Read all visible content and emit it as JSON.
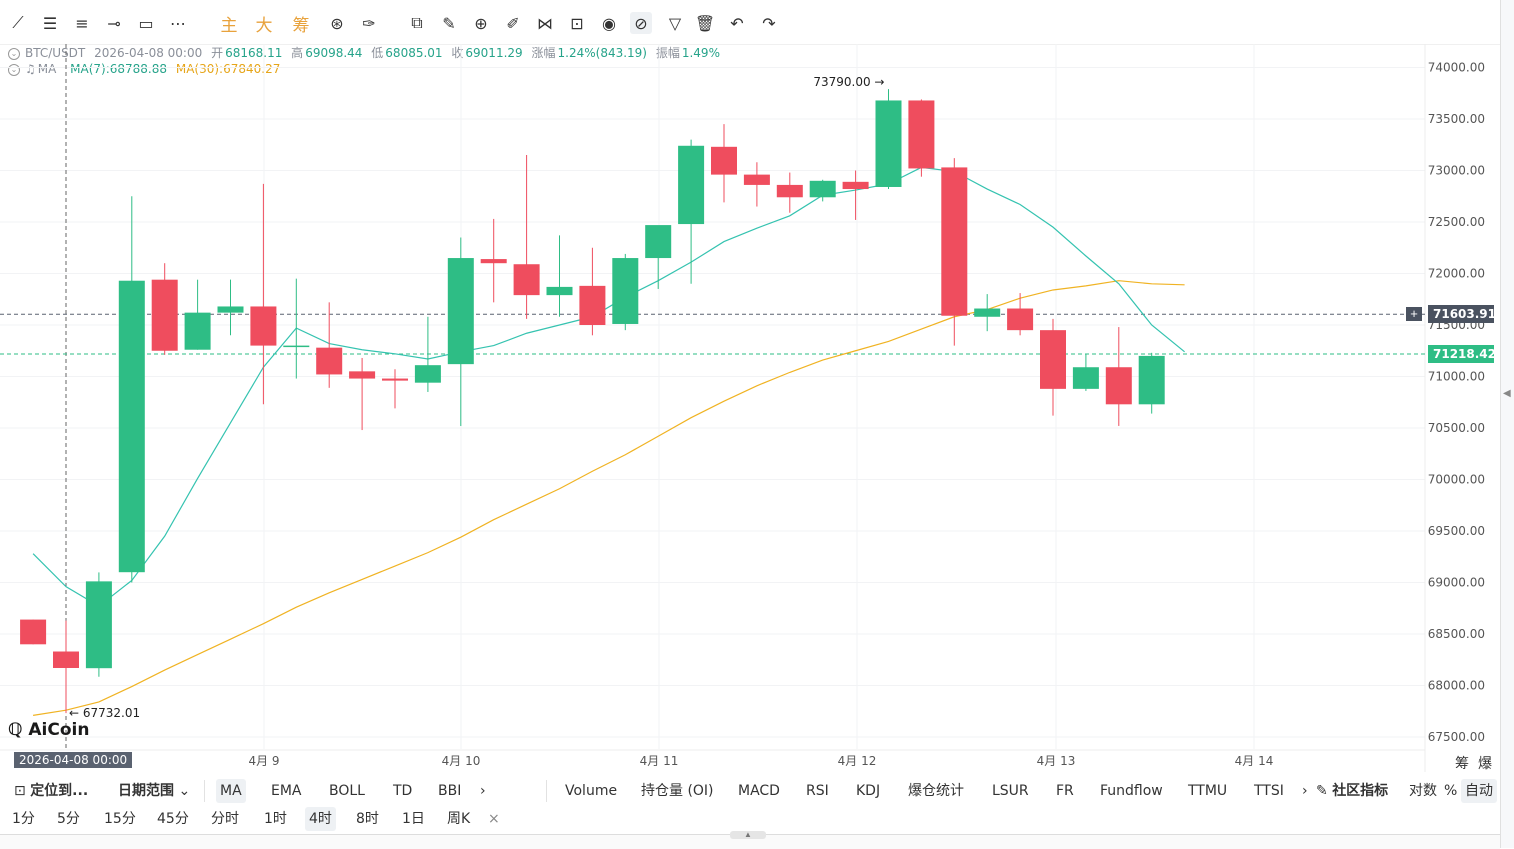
{
  "toolbar": {
    "tools": [
      {
        "name": "line-tool-icon",
        "glyph": "⟋"
      },
      {
        "name": "horizontal-lines-icon",
        "glyph": "☰"
      },
      {
        "name": "parallel-lines-icon",
        "glyph": "≡"
      },
      {
        "name": "ray-tool-icon",
        "glyph": "⊸"
      },
      {
        "name": "rectangle-tool-icon",
        "glyph": "▭"
      },
      {
        "name": "more-tools-icon",
        "glyph": "⋯"
      }
    ],
    "cn_buttons": [
      "主",
      "大",
      "筹"
    ],
    "right_tools": [
      {
        "name": "copy-icon",
        "glyph": "⧉"
      },
      {
        "name": "ruler-icon",
        "glyph": "✎"
      },
      {
        "name": "zoom-icon",
        "glyph": "⊕"
      },
      {
        "name": "brush-icon",
        "glyph": "✐"
      },
      {
        "name": "magnet-icon",
        "glyph": "⋈"
      },
      {
        "name": "lock-icon",
        "glyph": "⊡"
      },
      {
        "name": "eye-icon",
        "glyph": "◉"
      },
      {
        "name": "link-icon",
        "glyph": "⊘"
      },
      {
        "name": "filter-icon",
        "glyph": "▽"
      },
      {
        "name": "trash-icon",
        "glyph": "🗑"
      },
      {
        "name": "undo-icon",
        "glyph": "↶"
      },
      {
        "name": "redo-icon",
        "glyph": "↷"
      }
    ]
  },
  "info": {
    "symbol": "BTC/USDT",
    "datetime": "2026-04-08 00:00",
    "open_label": "开",
    "open": "68168.11",
    "high_label": "高",
    "high": "69098.44",
    "low_label": "低",
    "low": "68085.01",
    "close_label": "收",
    "close": "69011.29",
    "change_label": "涨幅",
    "change": "1.24%(843.19)",
    "amp_label": "振幅",
    "amp": "1.49%",
    "ma_name": "MA",
    "ma7": "MA(7):68788.88",
    "ma30": "MA(30):67840.27"
  },
  "price_tags": {
    "crosshair": "71603.91",
    "last": "71218.42",
    "crosshair_date": "2026-04-08 00:00"
  },
  "logo": "AiCoin",
  "corner_labels": [
    "筹",
    "爆"
  ],
  "tabs": {
    "left": [
      "定位到...",
      "日期范围"
    ],
    "main_indicators": [
      "MA",
      "EMA",
      "BOLL",
      "TD",
      "BBI"
    ],
    "sub_indicators": [
      "Volume",
      "持仓量 (OI)",
      "MACD",
      "RSI",
      "KDJ",
      "爆仓统计",
      "LSUR",
      "FR",
      "Fundflow",
      "TTMU",
      "TTSI"
    ],
    "community": "社区指标",
    "scale": [
      "对数",
      "%",
      "自动"
    ],
    "more": "›"
  },
  "timeframes": [
    "1分",
    "5分",
    "15分",
    "45分",
    "分时",
    "1时",
    "4时",
    "8时",
    "1日",
    "周K"
  ],
  "timeframe_selected": "4时",
  "colors": {
    "up": "#2ebd85",
    "down": "#ef4d5e",
    "ma7": "#35c3b0",
    "ma30": "#f0b323",
    "grid": "#f2f3f5"
  },
  "chart_data": {
    "type": "candlestick",
    "symbol": "BTC/USDT",
    "interval": "4时",
    "y_ticks": [
      74000,
      73500,
      73000,
      72500,
      72000,
      71500,
      71000,
      70500,
      70000,
      69500,
      69000,
      68500,
      68000,
      67500
    ],
    "x_ticks": [
      "4月 9",
      "4月 10",
      "4月 11",
      "4月 12",
      "4月 13",
      "4月 14"
    ],
    "candles": [
      {
        "o": 68640,
        "h": 68640,
        "l": 68400,
        "c": 68400
      },
      {
        "o": 68330,
        "h": 68630,
        "l": 67732,
        "c": 68170
      },
      {
        "o": 68168,
        "h": 69098,
        "l": 68085,
        "c": 69011
      },
      {
        "o": 69100,
        "h": 72750,
        "l": 69000,
        "c": 71930
      },
      {
        "o": 71940,
        "h": 72100,
        "l": 71210,
        "c": 71250
      },
      {
        "o": 71260,
        "h": 71940,
        "l": 71260,
        "c": 71620
      },
      {
        "o": 71620,
        "h": 71940,
        "l": 71400,
        "c": 71680
      },
      {
        "o": 71680,
        "h": 72870,
        "l": 70730,
        "c": 71300
      },
      {
        "o": 71290,
        "h": 71950,
        "l": 70980,
        "c": 71300
      },
      {
        "o": 71280,
        "h": 71720,
        "l": 70890,
        "c": 71020
      },
      {
        "o": 71050,
        "h": 71180,
        "l": 70480,
        "c": 70980
      },
      {
        "o": 70980,
        "h": 71070,
        "l": 70690,
        "c": 70960
      },
      {
        "o": 70940,
        "h": 71580,
        "l": 70850,
        "c": 71110
      },
      {
        "o": 71120,
        "h": 72350,
        "l": 70520,
        "c": 72150
      },
      {
        "o": 72140,
        "h": 72530,
        "l": 71720,
        "c": 72100
      },
      {
        "o": 72090,
        "h": 73150,
        "l": 71560,
        "c": 71790
      },
      {
        "o": 71790,
        "h": 72370,
        "l": 71580,
        "c": 71870
      },
      {
        "o": 71880,
        "h": 72250,
        "l": 71400,
        "c": 71500
      },
      {
        "o": 71510,
        "h": 72190,
        "l": 71450,
        "c": 72150
      },
      {
        "o": 72150,
        "h": 72450,
        "l": 71850,
        "c": 72470
      },
      {
        "o": 72480,
        "h": 73300,
        "l": 71900,
        "c": 73240
      },
      {
        "o": 73230,
        "h": 73450,
        "l": 72690,
        "c": 72960
      },
      {
        "o": 72960,
        "h": 73080,
        "l": 72650,
        "c": 72860
      },
      {
        "o": 72860,
        "h": 72980,
        "l": 72590,
        "c": 72740
      },
      {
        "o": 72740,
        "h": 72910,
        "l": 72700,
        "c": 72900
      },
      {
        "o": 72890,
        "h": 73000,
        "l": 72520,
        "c": 72820
      },
      {
        "o": 72840,
        "h": 73790,
        "l": 72820,
        "c": 73680
      },
      {
        "o": 73680,
        "h": 73690,
        "l": 72940,
        "c": 73020
      },
      {
        "o": 73030,
        "h": 73120,
        "l": 71300,
        "c": 71590
      },
      {
        "o": 71580,
        "h": 71800,
        "l": 71440,
        "c": 71660
      },
      {
        "o": 71660,
        "h": 71810,
        "l": 71400,
        "c": 71450
      },
      {
        "o": 71450,
        "h": 71560,
        "l": 70620,
        "c": 70880
      },
      {
        "o": 70880,
        "h": 71220,
        "l": 70860,
        "c": 71090
      },
      {
        "o": 71090,
        "h": 71480,
        "l": 70520,
        "c": 70730
      },
      {
        "o": 70730,
        "h": 71230,
        "l": 70640,
        "c": 71200
      }
    ],
    "ma7": [
      [
        -1,
        69280
      ],
      [
        0,
        68960
      ],
      [
        1,
        68770
      ],
      [
        2,
        69020
      ],
      [
        3,
        69450
      ],
      [
        4,
        70010
      ],
      [
        5,
        70550
      ],
      [
        6,
        71090
      ],
      [
        7,
        71470
      ],
      [
        8,
        71320
      ],
      [
        9,
        71260
      ],
      [
        10,
        71220
      ],
      [
        11,
        71170
      ],
      [
        12,
        71240
      ],
      [
        13,
        71300
      ],
      [
        14,
        71420
      ],
      [
        15,
        71500
      ],
      [
        16,
        71580
      ],
      [
        17,
        71770
      ],
      [
        18,
        71930
      ],
      [
        19,
        72110
      ],
      [
        20,
        72310
      ],
      [
        21,
        72440
      ],
      [
        22,
        72560
      ],
      [
        23,
        72760
      ],
      [
        24,
        72810
      ],
      [
        25,
        72870
      ],
      [
        26,
        73030
      ],
      [
        27,
        72990
      ],
      [
        28,
        72820
      ],
      [
        29,
        72670
      ],
      [
        30,
        72450
      ],
      [
        31,
        72170
      ],
      [
        32,
        71900
      ],
      [
        33,
        71500
      ],
      [
        34,
        71240
      ]
    ],
    "ma30": [
      [
        -1,
        67710
      ],
      [
        0,
        67760
      ],
      [
        1,
        67840
      ],
      [
        2,
        67990
      ],
      [
        3,
        68150
      ],
      [
        4,
        68300
      ],
      [
        5,
        68450
      ],
      [
        6,
        68600
      ],
      [
        7,
        68760
      ],
      [
        8,
        68900
      ],
      [
        9,
        69030
      ],
      [
        10,
        69160
      ],
      [
        11,
        69290
      ],
      [
        12,
        69440
      ],
      [
        13,
        69610
      ],
      [
        14,
        69760
      ],
      [
        15,
        69910
      ],
      [
        16,
        70080
      ],
      [
        17,
        70240
      ],
      [
        18,
        70420
      ],
      [
        19,
        70600
      ],
      [
        20,
        70760
      ],
      [
        21,
        70910
      ],
      [
        22,
        71040
      ],
      [
        23,
        71160
      ],
      [
        24,
        71250
      ],
      [
        25,
        71340
      ],
      [
        26,
        71460
      ],
      [
        27,
        71580
      ],
      [
        28,
        71650
      ],
      [
        29,
        71760
      ],
      [
        30,
        71840
      ],
      [
        31,
        71880
      ],
      [
        32,
        71930
      ],
      [
        33,
        71900
      ],
      [
        34,
        71890
      ]
    ],
    "annotations": [
      {
        "label": "73790.00 →",
        "kind": "high"
      },
      {
        "label": "← 67732.01",
        "kind": "low"
      }
    ]
  }
}
